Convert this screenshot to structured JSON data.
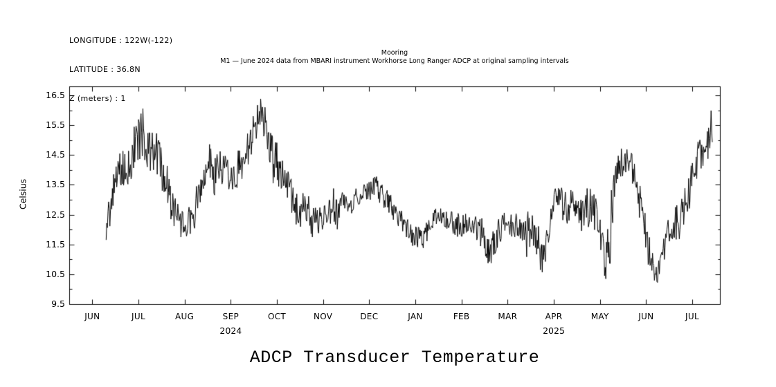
{
  "header": {
    "longitude": "LONGITUDE : 122W(-122)",
    "latitude": "LATITUDE : 36.8N",
    "z": "Z (meters) : 1"
  },
  "chart_data": {
    "type": "line",
    "supertitle": "Mooring",
    "subtitle": "M1 — June 2024 data from MBARI instrument Workhorse Long Ranger ADCP at original sampling intervals",
    "title": "ADCP Transducer Temperature",
    "ylabel": "Celsius",
    "ylim": [
      9.5,
      16.8
    ],
    "y_ticks": [
      9.5,
      10.5,
      11.5,
      12.5,
      13.5,
      14.5,
      15.5,
      16.5
    ],
    "x_months": [
      "JUN",
      "JUL",
      "AUG",
      "SEP",
      "OCT",
      "NOV",
      "DEC",
      "JAN",
      "FEB",
      "MAR",
      "APR",
      "MAY",
      "JUN",
      "JUL"
    ],
    "xlim_months": [
      -0.5,
      13.6
    ],
    "year_labels": [
      {
        "text": "2024",
        "month_index": 3
      },
      {
        "text": "2025",
        "month_index": 10
      }
    ],
    "grid": false,
    "legend": "none",
    "line_color": "#000000",
    "background": "#ffffff",
    "series": [
      {
        "name": "ADCP transducer temperature",
        "units": "Celsius",
        "x_unit": "months after JUN 2024 tick",
        "note": "points are [t_months, mean_celsius, noise_half_range] read from the plotted envelope",
        "points": [
          [
            0.3,
            11.9,
            0.5
          ],
          [
            0.45,
            13.2,
            0.7
          ],
          [
            0.6,
            14.1,
            0.6
          ],
          [
            0.75,
            14.0,
            0.7
          ],
          [
            0.9,
            14.7,
            0.8
          ],
          [
            1.05,
            15.4,
            1.2
          ],
          [
            1.15,
            14.6,
            0.9
          ],
          [
            1.3,
            14.8,
            0.8
          ],
          [
            1.45,
            14.4,
            0.8
          ],
          [
            1.6,
            13.6,
            0.7
          ],
          [
            1.75,
            12.6,
            0.7
          ],
          [
            1.9,
            12.2,
            0.5
          ],
          [
            2.1,
            12.3,
            0.5
          ],
          [
            2.25,
            12.8,
            0.7
          ],
          [
            2.4,
            14.0,
            0.8
          ],
          [
            2.5,
            14.4,
            0.6
          ],
          [
            2.65,
            13.8,
            0.7
          ],
          [
            2.8,
            14.1,
            0.6
          ],
          [
            2.95,
            13.7,
            0.6
          ],
          [
            3.1,
            13.9,
            0.6
          ],
          [
            3.25,
            14.3,
            0.6
          ],
          [
            3.4,
            14.8,
            0.6
          ],
          [
            3.55,
            15.5,
            0.6
          ],
          [
            3.65,
            16.1,
            0.5
          ],
          [
            3.75,
            15.4,
            0.8
          ],
          [
            3.9,
            14.4,
            0.8
          ],
          [
            4.05,
            14.0,
            0.8
          ],
          [
            4.2,
            13.6,
            0.7
          ],
          [
            4.35,
            13.0,
            0.6
          ],
          [
            4.5,
            12.4,
            0.6
          ],
          [
            4.65,
            12.8,
            0.6
          ],
          [
            4.8,
            12.2,
            0.6
          ],
          [
            4.95,
            12.4,
            0.5
          ],
          [
            5.1,
            12.6,
            0.5
          ],
          [
            5.25,
            12.6,
            0.5
          ],
          [
            5.4,
            12.8,
            0.5
          ],
          [
            5.55,
            12.9,
            0.4
          ],
          [
            5.7,
            13.0,
            0.4
          ],
          [
            5.85,
            13.1,
            0.4
          ],
          [
            6.0,
            13.3,
            0.4
          ],
          [
            6.15,
            13.4,
            0.4
          ],
          [
            6.3,
            13.1,
            0.4
          ],
          [
            6.45,
            12.8,
            0.4
          ],
          [
            6.6,
            12.6,
            0.4
          ],
          [
            6.75,
            12.3,
            0.5
          ],
          [
            6.9,
            11.9,
            0.4
          ],
          [
            7.05,
            11.7,
            0.4
          ],
          [
            7.2,
            11.8,
            0.4
          ],
          [
            7.35,
            12.2,
            0.4
          ],
          [
            7.5,
            12.5,
            0.3
          ],
          [
            7.65,
            12.3,
            0.4
          ],
          [
            7.8,
            12.2,
            0.4
          ],
          [
            7.95,
            12.2,
            0.4
          ],
          [
            8.1,
            12.1,
            0.4
          ],
          [
            8.25,
            12.2,
            0.4
          ],
          [
            8.45,
            11.8,
            0.5
          ],
          [
            8.6,
            11.2,
            0.5
          ],
          [
            8.7,
            11.5,
            0.5
          ],
          [
            8.85,
            12.0,
            0.5
          ],
          [
            9.0,
            12.2,
            0.5
          ],
          [
            9.15,
            12.2,
            0.5
          ],
          [
            9.3,
            12.1,
            0.6
          ],
          [
            9.45,
            12.0,
            0.6
          ],
          [
            9.6,
            11.8,
            0.6
          ],
          [
            9.75,
            11.1,
            0.7
          ],
          [
            9.88,
            11.8,
            0.8
          ],
          [
            10.0,
            12.8,
            0.7
          ],
          [
            10.1,
            13.0,
            0.6
          ],
          [
            10.25,
            12.7,
            0.6
          ],
          [
            10.4,
            12.9,
            0.6
          ],
          [
            10.55,
            12.2,
            0.7
          ],
          [
            10.7,
            12.7,
            0.7
          ],
          [
            10.85,
            12.8,
            0.7
          ],
          [
            11.0,
            11.9,
            0.8
          ],
          [
            11.12,
            10.9,
            0.6
          ],
          [
            11.25,
            12.2,
            1.2
          ],
          [
            11.4,
            14.0,
            0.7
          ],
          [
            11.55,
            14.3,
            0.5
          ],
          [
            11.7,
            14.1,
            0.5
          ],
          [
            11.82,
            13.3,
            0.7
          ],
          [
            11.95,
            12.2,
            0.6
          ],
          [
            12.08,
            11.2,
            0.5
          ],
          [
            12.2,
            10.4,
            0.5
          ],
          [
            12.32,
            10.9,
            0.5
          ],
          [
            12.45,
            11.8,
            0.6
          ],
          [
            12.6,
            12.1,
            0.6
          ],
          [
            12.75,
            12.3,
            0.7
          ],
          [
            12.9,
            13.2,
            0.6
          ],
          [
            13.02,
            13.9,
            0.6
          ],
          [
            13.12,
            14.4,
            0.6
          ],
          [
            13.25,
            14.7,
            0.6
          ],
          [
            13.35,
            15.0,
            0.8
          ],
          [
            13.44,
            15.5,
            0.8
          ]
        ]
      }
    ]
  }
}
